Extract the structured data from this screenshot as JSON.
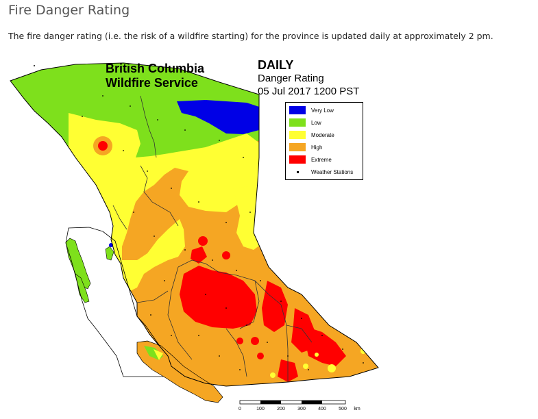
{
  "header": {
    "title": "Fire Danger Rating",
    "intro": "The fire danger rating (i.e. the risk of a wildfire starting) for the province is updated daily at approximately 2 pm."
  },
  "map": {
    "agency_line1": "British Columbia",
    "agency_line2": "Wildfire Service",
    "product_title": "DAILY",
    "product_subtitle": "Danger Rating",
    "product_date": "05 Jul 2017 1200 PST",
    "legend": [
      {
        "label": "Very Low",
        "color": "#0000e6"
      },
      {
        "label": "Low",
        "color": "#7ee01c"
      },
      {
        "label": "Moderate",
        "color": "#ffff33"
      },
      {
        "label": "High",
        "color": "#f5a623"
      },
      {
        "label": "Extreme",
        "color": "#ff0000"
      }
    ],
    "legend_stations": "Weather Stations",
    "scale_labels": [
      "0",
      "100",
      "200",
      "300",
      "400",
      "500",
      "km"
    ]
  },
  "colors": {
    "very_low": "#0000e6",
    "low": "#7ee01c",
    "moderate": "#ffff33",
    "high": "#f5a623",
    "extreme": "#ff0000",
    "water": "#ffffff"
  }
}
